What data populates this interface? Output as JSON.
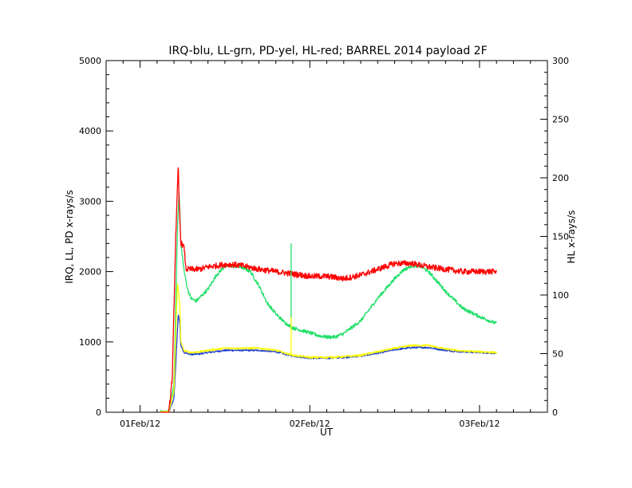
{
  "chart_data": {
    "type": "line",
    "title": "IRQ-blu, LL-grn, PD-yel, HL-red; BARREL 2014 payload 2F",
    "xlabel": "UT",
    "ylabel": "IRQ, LL, PD x-rays/s",
    "y2label": "HL x-rays/s",
    "xlim": [
      -0.2,
      2.4
    ],
    "ylim": [
      0,
      5000
    ],
    "y2lim": [
      0,
      300
    ],
    "x_ticks": [
      {
        "value": 0,
        "label": "01Feb/12"
      },
      {
        "value": 1,
        "label": "02Feb/12"
      },
      {
        "value": 2,
        "label": "03Feb/12"
      }
    ],
    "y_ticks": [
      "0",
      "1000",
      "2000",
      "3000",
      "4000",
      "5000"
    ],
    "y2_ticks": [
      "0",
      "50",
      "100",
      "150",
      "200",
      "250",
      "300"
    ],
    "grid": false,
    "legend": "none",
    "series": [
      {
        "key": "IRQ",
        "color": "#1f3fd0",
        "axis": "left",
        "noise": 12,
        "points": [
          [
            0.12,
            0
          ],
          [
            0.17,
            5
          ],
          [
            0.2,
            200
          ],
          [
            0.225,
            1400
          ],
          [
            0.235,
            1250
          ],
          [
            0.24,
            950
          ],
          [
            0.26,
            850
          ],
          [
            0.3,
            820
          ],
          [
            0.35,
            830
          ],
          [
            0.4,
            850
          ],
          [
            0.5,
            880
          ],
          [
            0.6,
            880
          ],
          [
            0.7,
            880
          ],
          [
            0.8,
            860
          ],
          [
            0.9,
            800
          ],
          [
            1.0,
            770
          ],
          [
            1.1,
            770
          ],
          [
            1.2,
            780
          ],
          [
            1.3,
            800
          ],
          [
            1.4,
            840
          ],
          [
            1.5,
            890
          ],
          [
            1.6,
            920
          ],
          [
            1.7,
            920
          ],
          [
            1.8,
            880
          ],
          [
            1.9,
            860
          ],
          [
            2.0,
            850
          ],
          [
            2.1,
            840
          ]
        ]
      },
      {
        "key": "LL",
        "color": "#22e06a",
        "axis": "left",
        "noise": 25,
        "points": [
          [
            0.12,
            0
          ],
          [
            0.17,
            5
          ],
          [
            0.2,
            400
          ],
          [
            0.22,
            2600
          ],
          [
            0.23,
            3150
          ],
          [
            0.24,
            2400
          ],
          [
            0.26,
            2000
          ],
          [
            0.28,
            1750
          ],
          [
            0.3,
            1620
          ],
          [
            0.33,
            1580
          ],
          [
            0.36,
            1650
          ],
          [
            0.4,
            1750
          ],
          [
            0.45,
            1950
          ],
          [
            0.5,
            2080
          ],
          [
            0.55,
            2080
          ],
          [
            0.6,
            2060
          ],
          [
            0.65,
            2000
          ],
          [
            0.7,
            1800
          ],
          [
            0.75,
            1550
          ],
          [
            0.8,
            1400
          ],
          [
            0.85,
            1280
          ],
          [
            0.9,
            1200
          ],
          [
            1.0,
            1130
          ],
          [
            1.05,
            1090
          ],
          [
            1.1,
            1070
          ],
          [
            1.15,
            1070
          ],
          [
            1.2,
            1120
          ],
          [
            1.3,
            1300
          ],
          [
            1.4,
            1620
          ],
          [
            1.5,
            1900
          ],
          [
            1.55,
            2020
          ],
          [
            1.6,
            2080
          ],
          [
            1.65,
            2080
          ],
          [
            1.7,
            2000
          ],
          [
            1.8,
            1720
          ],
          [
            1.9,
            1480
          ],
          [
            2.0,
            1360
          ],
          [
            2.1,
            1260
          ]
        ]
      },
      {
        "key": "PD",
        "color": "#ffff00",
        "axis": "left",
        "noise": 14,
        "points": [
          [
            0.12,
            0
          ],
          [
            0.17,
            5
          ],
          [
            0.2,
            300
          ],
          [
            0.22,
            1850
          ],
          [
            0.235,
            1500
          ],
          [
            0.24,
            1000
          ],
          [
            0.26,
            870
          ],
          [
            0.3,
            850
          ],
          [
            0.35,
            860
          ],
          [
            0.4,
            880
          ],
          [
            0.5,
            910
          ],
          [
            0.6,
            910
          ],
          [
            0.7,
            910
          ],
          [
            0.8,
            880
          ],
          [
            0.9,
            810
          ],
          [
            1.0,
            780
          ],
          [
            1.1,
            780
          ],
          [
            1.2,
            790
          ],
          [
            1.3,
            810
          ],
          [
            1.4,
            860
          ],
          [
            1.5,
            910
          ],
          [
            1.6,
            950
          ],
          [
            1.7,
            950
          ],
          [
            1.8,
            900
          ],
          [
            1.9,
            870
          ],
          [
            2.0,
            860
          ],
          [
            2.1,
            850
          ]
        ]
      },
      {
        "key": "HL",
        "color": "#ff0000",
        "axis": "right",
        "noise": 2.5,
        "points": [
          [
            0.12,
            0
          ],
          [
            0.17,
            0
          ],
          [
            0.19,
            30
          ],
          [
            0.21,
            150
          ],
          [
            0.225,
            210
          ],
          [
            0.23,
            180
          ],
          [
            0.24,
            145
          ],
          [
            0.26,
            140
          ],
          [
            0.27,
            122
          ],
          [
            0.3,
            122
          ],
          [
            0.35,
            122
          ],
          [
            0.4,
            124
          ],
          [
            0.45,
            125
          ],
          [
            0.5,
            126
          ],
          [
            0.55,
            126
          ],
          [
            0.6,
            125
          ],
          [
            0.7,
            122
          ],
          [
            0.8,
            120
          ],
          [
            0.9,
            118
          ],
          [
            1.0,
            116
          ],
          [
            1.1,
            116
          ],
          [
            1.2,
            114
          ],
          [
            1.3,
            117
          ],
          [
            1.4,
            122
          ],
          [
            1.5,
            127
          ],
          [
            1.6,
            127
          ],
          [
            1.7,
            124
          ],
          [
            1.8,
            122
          ],
          [
            1.9,
            120
          ],
          [
            2.0,
            120
          ],
          [
            2.1,
            120
          ]
        ]
      }
    ],
    "spikes": [
      {
        "key": "LL",
        "x": 0.89,
        "y": 2400
      },
      {
        "key": "PD",
        "x": 0.89,
        "y": 1350
      }
    ]
  }
}
